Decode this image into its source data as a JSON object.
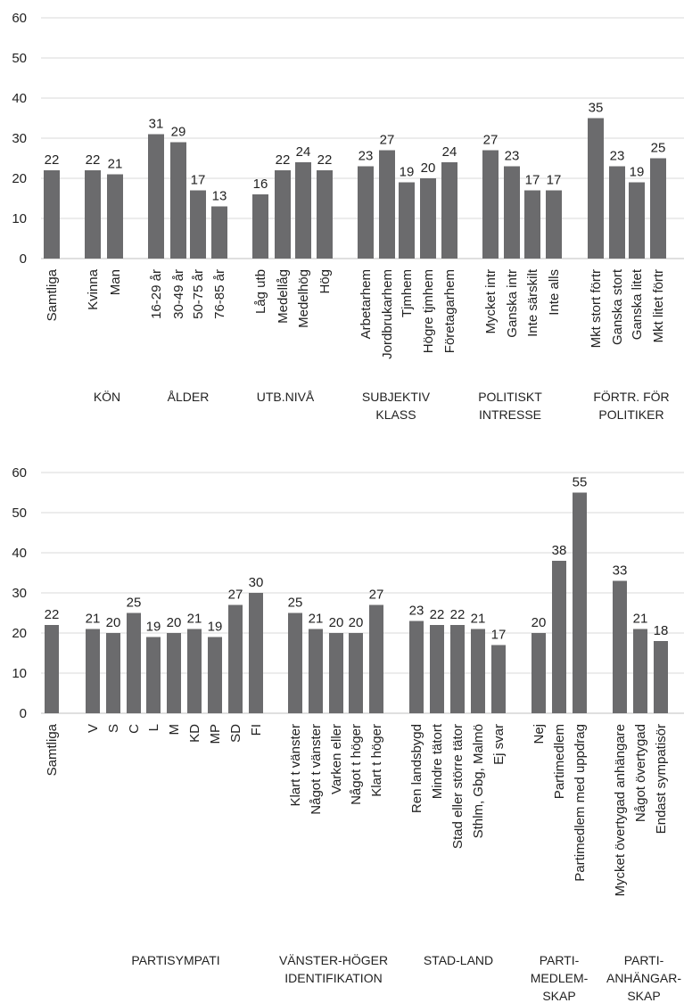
{
  "chart_data": [
    {
      "type": "bar",
      "ylim": [
        0,
        60
      ],
      "yticks": [
        0,
        10,
        20,
        30,
        40,
        50,
        60
      ],
      "color": "#6b6b6d",
      "groups": [
        {
          "label": [
            ""
          ],
          "categories": [
            "Samtliga"
          ],
          "values": [
            22
          ]
        },
        {
          "label": [
            "KÖN"
          ],
          "categories": [
            "Kvinna",
            "Man"
          ],
          "values": [
            22,
            21
          ]
        },
        {
          "label": [
            "ÅLDER"
          ],
          "categories": [
            "16-29 år",
            "30-49 år",
            "50-75 år",
            "76-85 år"
          ],
          "values": [
            31,
            29,
            17,
            13
          ]
        },
        {
          "label": [
            "UTB.NIVÅ"
          ],
          "categories": [
            "Låg utb",
            "Medellåg",
            "Medelhög",
            "Hög"
          ],
          "values": [
            16,
            22,
            24,
            22
          ]
        },
        {
          "label": [
            "SUBJEKTIV",
            "KLASS"
          ],
          "categories": [
            "Arbetarhem",
            "Jordbrukarhem",
            "Tjmhem",
            "Högre tjmhem",
            "Företagarhem"
          ],
          "values": [
            23,
            27,
            19,
            20,
            24
          ]
        },
        {
          "label": [
            "POLITISKT",
            "INTRESSE"
          ],
          "categories": [
            "Mycket intr",
            "Ganska intr",
            "Inte särskilt",
            "Inte alls"
          ],
          "values": [
            27,
            23,
            17,
            17
          ]
        },
        {
          "label": [
            "FÖRTR. FÖR",
            "POLITIKER"
          ],
          "categories": [
            "Mkt stort förtr",
            "Ganska stort",
            "Ganska litet",
            "Mkt litet förtr"
          ],
          "values": [
            35,
            23,
            19,
            25
          ]
        }
      ]
    },
    {
      "type": "bar",
      "ylim": [
        0,
        60
      ],
      "yticks": [
        0,
        10,
        20,
        30,
        40,
        50,
        60
      ],
      "color": "#6b6b6d",
      "groups": [
        {
          "label": [
            ""
          ],
          "categories": [
            "Samtliga"
          ],
          "values": [
            22
          ]
        },
        {
          "label": [
            "PARTISYMPATI"
          ],
          "categories": [
            "V",
            "S",
            "C",
            "L",
            "M",
            "KD",
            "MP",
            "SD",
            "FI"
          ],
          "values": [
            21,
            20,
            25,
            19,
            20,
            21,
            19,
            27,
            30
          ]
        },
        {
          "label": [
            "VÄNSTER-HÖGER",
            "IDENTIFIKATION"
          ],
          "categories": [
            "Klart t vänster",
            "Något t vänster",
            "Varken eller",
            "Något t höger",
            "Klart t höger"
          ],
          "values": [
            25,
            21,
            20,
            20,
            27
          ]
        },
        {
          "label": [
            "STAD-LAND"
          ],
          "categories": [
            "Ren landsbygd",
            "Mindre tätort",
            "Stad eller större tätor",
            "Sthlm, Gbg, Malmö",
            "Ej svar"
          ],
          "values": [
            23,
            22,
            22,
            21,
            17
          ]
        },
        {
          "label": [
            "PARTI-",
            "MEDLEM-",
            "SKAP"
          ],
          "categories": [
            "Nej",
            "Partimedlem",
            "Partimedlem med uppdrag"
          ],
          "values": [
            20,
            38,
            55
          ]
        },
        {
          "label": [
            "PARTI-",
            "ANHÄNGAR-",
            "SKAP"
          ],
          "categories": [
            "Mycket övertygad anhängare",
            "Något övertygad",
            "Endast sympatisör"
          ],
          "values": [
            33,
            21,
            18
          ]
        }
      ]
    }
  ]
}
